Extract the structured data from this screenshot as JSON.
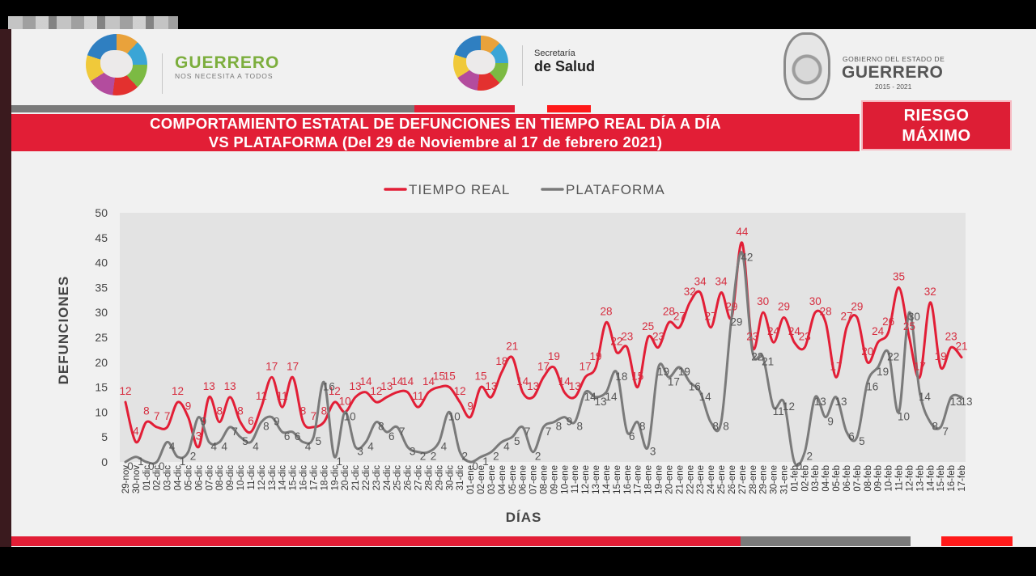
{
  "header": {
    "guerrero_name": "GUERRERO",
    "guerrero_tagline": "NOS NECESITA A TODOS",
    "secretaria_line1": "Secretaría",
    "secretaria_line2": "de Salud",
    "gobierno_line1": "GOBIERNO DEL ESTADO DE",
    "gobierno_line2": "GUERRERO",
    "gobierno_years": "2015 - 2021"
  },
  "banner": {
    "title_line1": "COMPORTAMIENTO ESTATAL DE DEFUNCIONES EN TIEMPO REAL DÍA A DÍA",
    "title_line2": "VS PLATAFORMA   (Del 29 de Noviembre al 17 de febrero 2021)",
    "risk_line1": "RIESGO",
    "risk_line2": "MÁXIMO"
  },
  "colors": {
    "red": "#e21e36",
    "gray": "#7a7a7a",
    "plot_bg": "#e3e3e3"
  },
  "chart_data": {
    "type": "line",
    "xlabel": "DÍAS",
    "ylabel": "DEFUNCIONES",
    "ylim": [
      0,
      50
    ],
    "yticks": [
      0,
      5,
      10,
      15,
      20,
      25,
      30,
      35,
      40,
      45,
      50
    ],
    "legend_position": "top",
    "categories": [
      "29-nov",
      "30-nov",
      "01-dic",
      "02-dic",
      "03-dic",
      "04-dic",
      "05-dic",
      "06-dic",
      "07-dic",
      "08-dic",
      "09-dic",
      "10-dic",
      "11-dic",
      "12-dic",
      "13-dic",
      "14-dic",
      "15-dic",
      "16-dic",
      "17-dic",
      "18-dic",
      "19-dic",
      "20-dic",
      "21-dic",
      "22-dic",
      "23-dic",
      "24-dic",
      "25-dic",
      "26-dic",
      "27-dic",
      "28-dic",
      "29-dic",
      "30-dic",
      "31-dic",
      "01-ene",
      "02-ene",
      "03-ene",
      "04-ene",
      "05-ene",
      "06-ene",
      "07-ene",
      "08-ene",
      "09-ene",
      "10-ene",
      "11-ene",
      "12-ene",
      "13-ene",
      "14-ene",
      "15-ene",
      "16-ene",
      "17-ene",
      "18-ene",
      "19-ene",
      "20-ene",
      "21-ene",
      "22-ene",
      "23-ene",
      "24-ene",
      "25-ene",
      "26-ene",
      "27-ene",
      "28-ene",
      "29-ene",
      "30-ene",
      "31-ene",
      "01-feb",
      "02-feb",
      "03-feb",
      "04-feb",
      "05-feb",
      "06-feb",
      "07-feb",
      "08-feb",
      "09-feb",
      "10-feb",
      "11-feb",
      "12-feb",
      "13-feb",
      "14-feb",
      "15-feb",
      "16-feb",
      "17-feb"
    ],
    "series": [
      {
        "name": "TIEMPO REAL",
        "values": [
          12,
          4,
          8,
          7,
          7,
          12,
          9,
          3,
          13,
          8,
          13,
          8,
          6,
          11,
          17,
          11,
          17,
          8,
          7,
          8,
          12,
          10,
          13,
          14,
          12,
          13,
          14,
          14,
          11,
          14,
          15,
          15,
          12,
          9,
          15,
          13,
          18,
          21,
          14,
          13,
          17,
          19,
          14,
          13,
          17,
          19,
          28,
          22,
          23,
          15,
          25,
          23,
          28,
          27,
          32,
          34,
          27,
          34,
          29,
          44,
          23,
          30,
          24,
          29,
          24,
          23,
          30,
          28,
          17,
          27,
          29,
          20,
          24,
          26,
          35,
          25,
          17,
          32,
          19,
          23,
          21
        ],
        "labels": [
          12,
          4,
          8,
          7,
          7,
          12,
          9,
          3,
          13,
          8,
          13,
          8,
          6,
          11,
          17,
          11,
          17,
          8,
          7,
          8,
          12,
          10,
          13,
          14,
          12,
          13,
          14,
          14,
          11,
          14,
          15,
          15,
          12,
          9,
          15,
          13,
          18,
          21,
          14,
          13,
          17,
          19,
          14,
          13,
          17,
          19,
          28,
          22,
          23,
          15,
          25,
          23,
          28,
          27,
          32,
          34,
          27,
          34,
          29,
          44,
          23,
          30,
          24,
          29,
          24,
          23,
          30,
          28,
          17,
          27,
          29,
          20,
          24,
          26,
          35,
          25,
          17,
          32,
          19,
          23,
          21
        ]
      },
      {
        "name": "PLATAFORMA",
        "values": [
          0,
          1,
          0,
          0,
          4,
          1,
          2,
          9,
          4,
          4,
          7,
          5,
          4,
          8,
          9,
          6,
          6,
          4,
          5,
          16,
          1,
          10,
          3,
          4,
          8,
          6,
          7,
          3,
          2,
          2,
          4,
          10,
          2,
          0,
          1,
          2,
          4,
          5,
          7,
          2,
          7,
          8,
          9,
          8,
          14,
          13,
          14,
          18,
          6,
          8,
          3,
          19,
          17,
          19,
          16,
          14,
          8,
          8,
          29,
          42,
          22,
          21,
          11,
          12,
          0,
          2,
          13,
          9,
          13,
          6,
          5,
          16,
          19,
          22,
          10,
          30,
          14,
          8,
          7,
          13,
          13
        ],
        "labels": [
          0,
          1,
          0,
          0,
          4,
          1,
          2,
          9,
          4,
          4,
          7,
          5,
          4,
          8,
          9,
          6,
          6,
          4,
          5,
          16,
          1,
          10,
          3,
          4,
          8,
          6,
          7,
          3,
          2,
          2,
          4,
          10,
          2,
          0,
          1,
          2,
          4,
          5,
          7,
          2,
          7,
          8,
          9,
          8,
          14,
          13,
          14,
          18,
          6,
          8,
          3,
          19,
          17,
          19,
          16,
          14,
          8,
          8,
          29,
          42,
          22,
          21,
          11,
          12,
          0,
          2,
          13,
          9,
          13,
          6,
          5,
          16,
          19,
          22,
          10,
          30,
          14,
          8,
          7,
          13,
          13
        ]
      }
    ]
  }
}
